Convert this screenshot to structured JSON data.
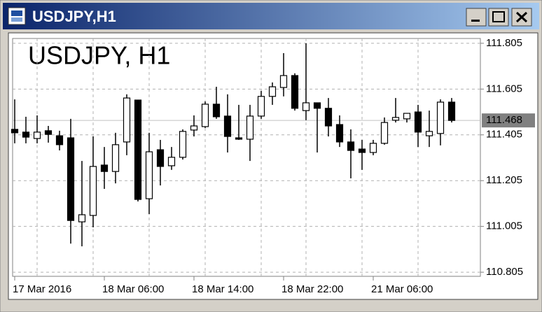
{
  "window": {
    "title": "USDJPY,H1"
  },
  "chart_data": {
    "type": "candlestick",
    "title": "USDJPY, H1",
    "categories": [
      "17 Mar 2016",
      null,
      null,
      null,
      null,
      null,
      null,
      null,
      "18 Mar 06:00",
      null,
      null,
      null,
      null,
      null,
      null,
      null,
      "18 Mar 14:00",
      null,
      null,
      null,
      null,
      null,
      null,
      null,
      "18 Mar 22:00",
      null,
      null,
      null,
      null,
      null,
      null,
      null,
      "21 Mar 06:00",
      null,
      null,
      null,
      null,
      null,
      null,
      null
    ],
    "open": [
      111.429,
      111.417,
      111.389,
      111.423,
      111.401,
      111.392,
      111.025,
      111.053,
      111.273,
      111.245,
      111.374,
      111.557,
      111.126,
      111.34,
      111.27,
      111.307,
      111.426,
      111.441,
      111.539,
      111.487,
      111.392,
      111.386,
      111.487,
      111.573,
      111.612,
      111.664,
      111.511,
      111.545,
      111.521,
      111.45,
      111.374,
      111.343,
      111.328,
      111.368,
      111.469,
      111.475,
      111.505,
      111.401,
      111.411,
      111.548
    ],
    "high": [
      111.56,
      111.484,
      111.49,
      111.444,
      111.423,
      111.475,
      111.291,
      111.398,
      111.352,
      111.414,
      111.582,
      111.557,
      111.414,
      111.383,
      111.352,
      111.429,
      111.49,
      111.551,
      111.615,
      111.582,
      111.536,
      111.536,
      111.597,
      111.634,
      111.762,
      111.674,
      111.805,
      111.545,
      111.566,
      111.49,
      111.429,
      111.383,
      111.383,
      111.481,
      111.566,
      111.499,
      111.536,
      111.511,
      111.56,
      111.566
    ],
    "low": [
      111.368,
      111.368,
      111.368,
      111.371,
      111.337,
      110.93,
      110.918,
      111.001,
      111.169,
      111.193,
      111.316,
      111.114,
      111.059,
      111.184,
      111.252,
      111.297,
      111.398,
      111.435,
      111.475,
      111.328,
      111.383,
      111.291,
      111.475,
      111.536,
      111.573,
      111.511,
      111.469,
      111.328,
      111.398,
      111.352,
      111.215,
      111.252,
      111.316,
      111.362,
      111.459,
      111.459,
      111.352,
      111.352,
      111.359,
      111.459
    ],
    "close": [
      111.414,
      111.395,
      111.417,
      111.407,
      111.362,
      111.031,
      111.056,
      111.267,
      111.245,
      111.362,
      111.566,
      111.123,
      111.331,
      111.267,
      111.307,
      111.42,
      111.444,
      111.539,
      111.484,
      111.398,
      111.386,
      111.487,
      111.573,
      111.615,
      111.664,
      111.521,
      111.545,
      111.521,
      111.444,
      111.374,
      111.337,
      111.328,
      111.368,
      111.459,
      111.481,
      111.499,
      111.417,
      111.42,
      111.548,
      111.468
    ],
    "last_price": 111.468,
    "ylim": [
      110.787,
      111.826
    ],
    "yticks": [
      111.805,
      111.605,
      111.405,
      111.205,
      111.005,
      110.805
    ],
    "grid": true,
    "up_color": "#ffffff",
    "down_color": "#000000"
  }
}
